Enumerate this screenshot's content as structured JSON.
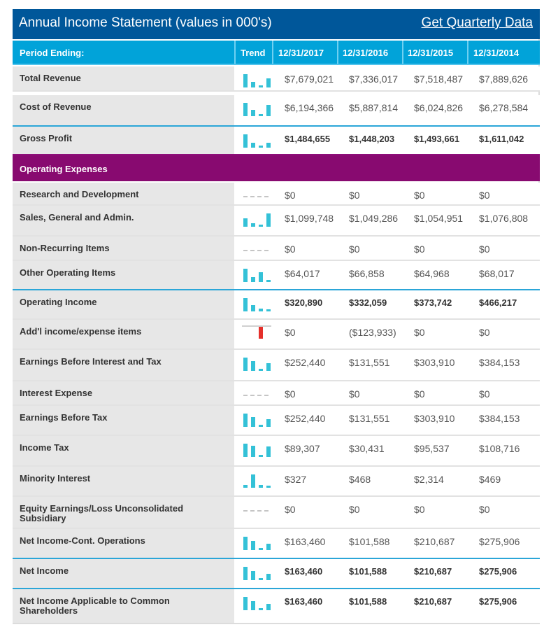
{
  "header": {
    "title": "Annual Income Statement (values in 000's)",
    "quarterly_link": "Get Quarterly Data"
  },
  "columns": {
    "period": "Period Ending:",
    "trend": "Trend",
    "dates": [
      "12/31/2017",
      "12/31/2016",
      "12/31/2015",
      "12/31/2014"
    ]
  },
  "section_operating": "Operating Expenses",
  "colors": {
    "header": "#00579a",
    "column_header": "#01a3d9",
    "section": "#880a70",
    "trend_bar": "#34c1d7",
    "negative_bar": "#e5302b"
  },
  "rows": [
    {
      "label": "Total Revenue",
      "values": [
        "$7,679,021",
        "$7,336,017",
        "$7,518,487",
        "$7,889,626"
      ]
    },
    {
      "label": "Cost of Revenue",
      "values": [
        "$6,194,366",
        "$5,887,814",
        "$6,024,826",
        "$6,278,584"
      ]
    },
    {
      "label": "Gross Profit",
      "values": [
        "$1,484,655",
        "$1,448,203",
        "$1,493,661",
        "$1,611,042"
      ]
    },
    {
      "label": "Research and Development",
      "values": [
        "$0",
        "$0",
        "$0",
        "$0"
      ]
    },
    {
      "label": "Sales, General and Admin.",
      "values": [
        "$1,099,748",
        "$1,049,286",
        "$1,054,951",
        "$1,076,808"
      ]
    },
    {
      "label": "Non-Recurring Items",
      "values": [
        "$0",
        "$0",
        "$0",
        "$0"
      ]
    },
    {
      "label": "Other Operating Items",
      "values": [
        "$64,017",
        "$66,858",
        "$64,968",
        "$68,017"
      ]
    },
    {
      "label": "Operating Income",
      "values": [
        "$320,890",
        "$332,059",
        "$373,742",
        "$466,217"
      ]
    },
    {
      "label": "Add'l income/expense items",
      "values": [
        "$0",
        "($123,933)",
        "$0",
        "$0"
      ]
    },
    {
      "label": "Earnings Before Interest and Tax",
      "values": [
        "$252,440",
        "$131,551",
        "$303,910",
        "$384,153"
      ]
    },
    {
      "label": "Interest Expense",
      "values": [
        "$0",
        "$0",
        "$0",
        "$0"
      ]
    },
    {
      "label": "Earnings Before Tax",
      "values": [
        "$252,440",
        "$131,551",
        "$303,910",
        "$384,153"
      ]
    },
    {
      "label": "Income Tax",
      "values": [
        "$89,307",
        "$30,431",
        "$95,537",
        "$108,716"
      ]
    },
    {
      "label": "Minority Interest",
      "values": [
        "$327",
        "$468",
        "$2,314",
        "$469"
      ]
    },
    {
      "label": "Equity Earnings/Loss Unconsolidated Subsidiary",
      "values": [
        "$0",
        "$0",
        "$0",
        "$0"
      ]
    },
    {
      "label": "Net Income-Cont. Operations",
      "values": [
        "$163,460",
        "$101,588",
        "$210,687",
        "$275,906"
      ]
    },
    {
      "label": "Net Income",
      "values": [
        "$163,460",
        "$101,588",
        "$210,687",
        "$275,906"
      ]
    },
    {
      "label": "Net Income Applicable to Common Shareholders",
      "values": [
        "$163,460",
        "$101,588",
        "$210,687",
        "$275,906"
      ]
    }
  ]
}
